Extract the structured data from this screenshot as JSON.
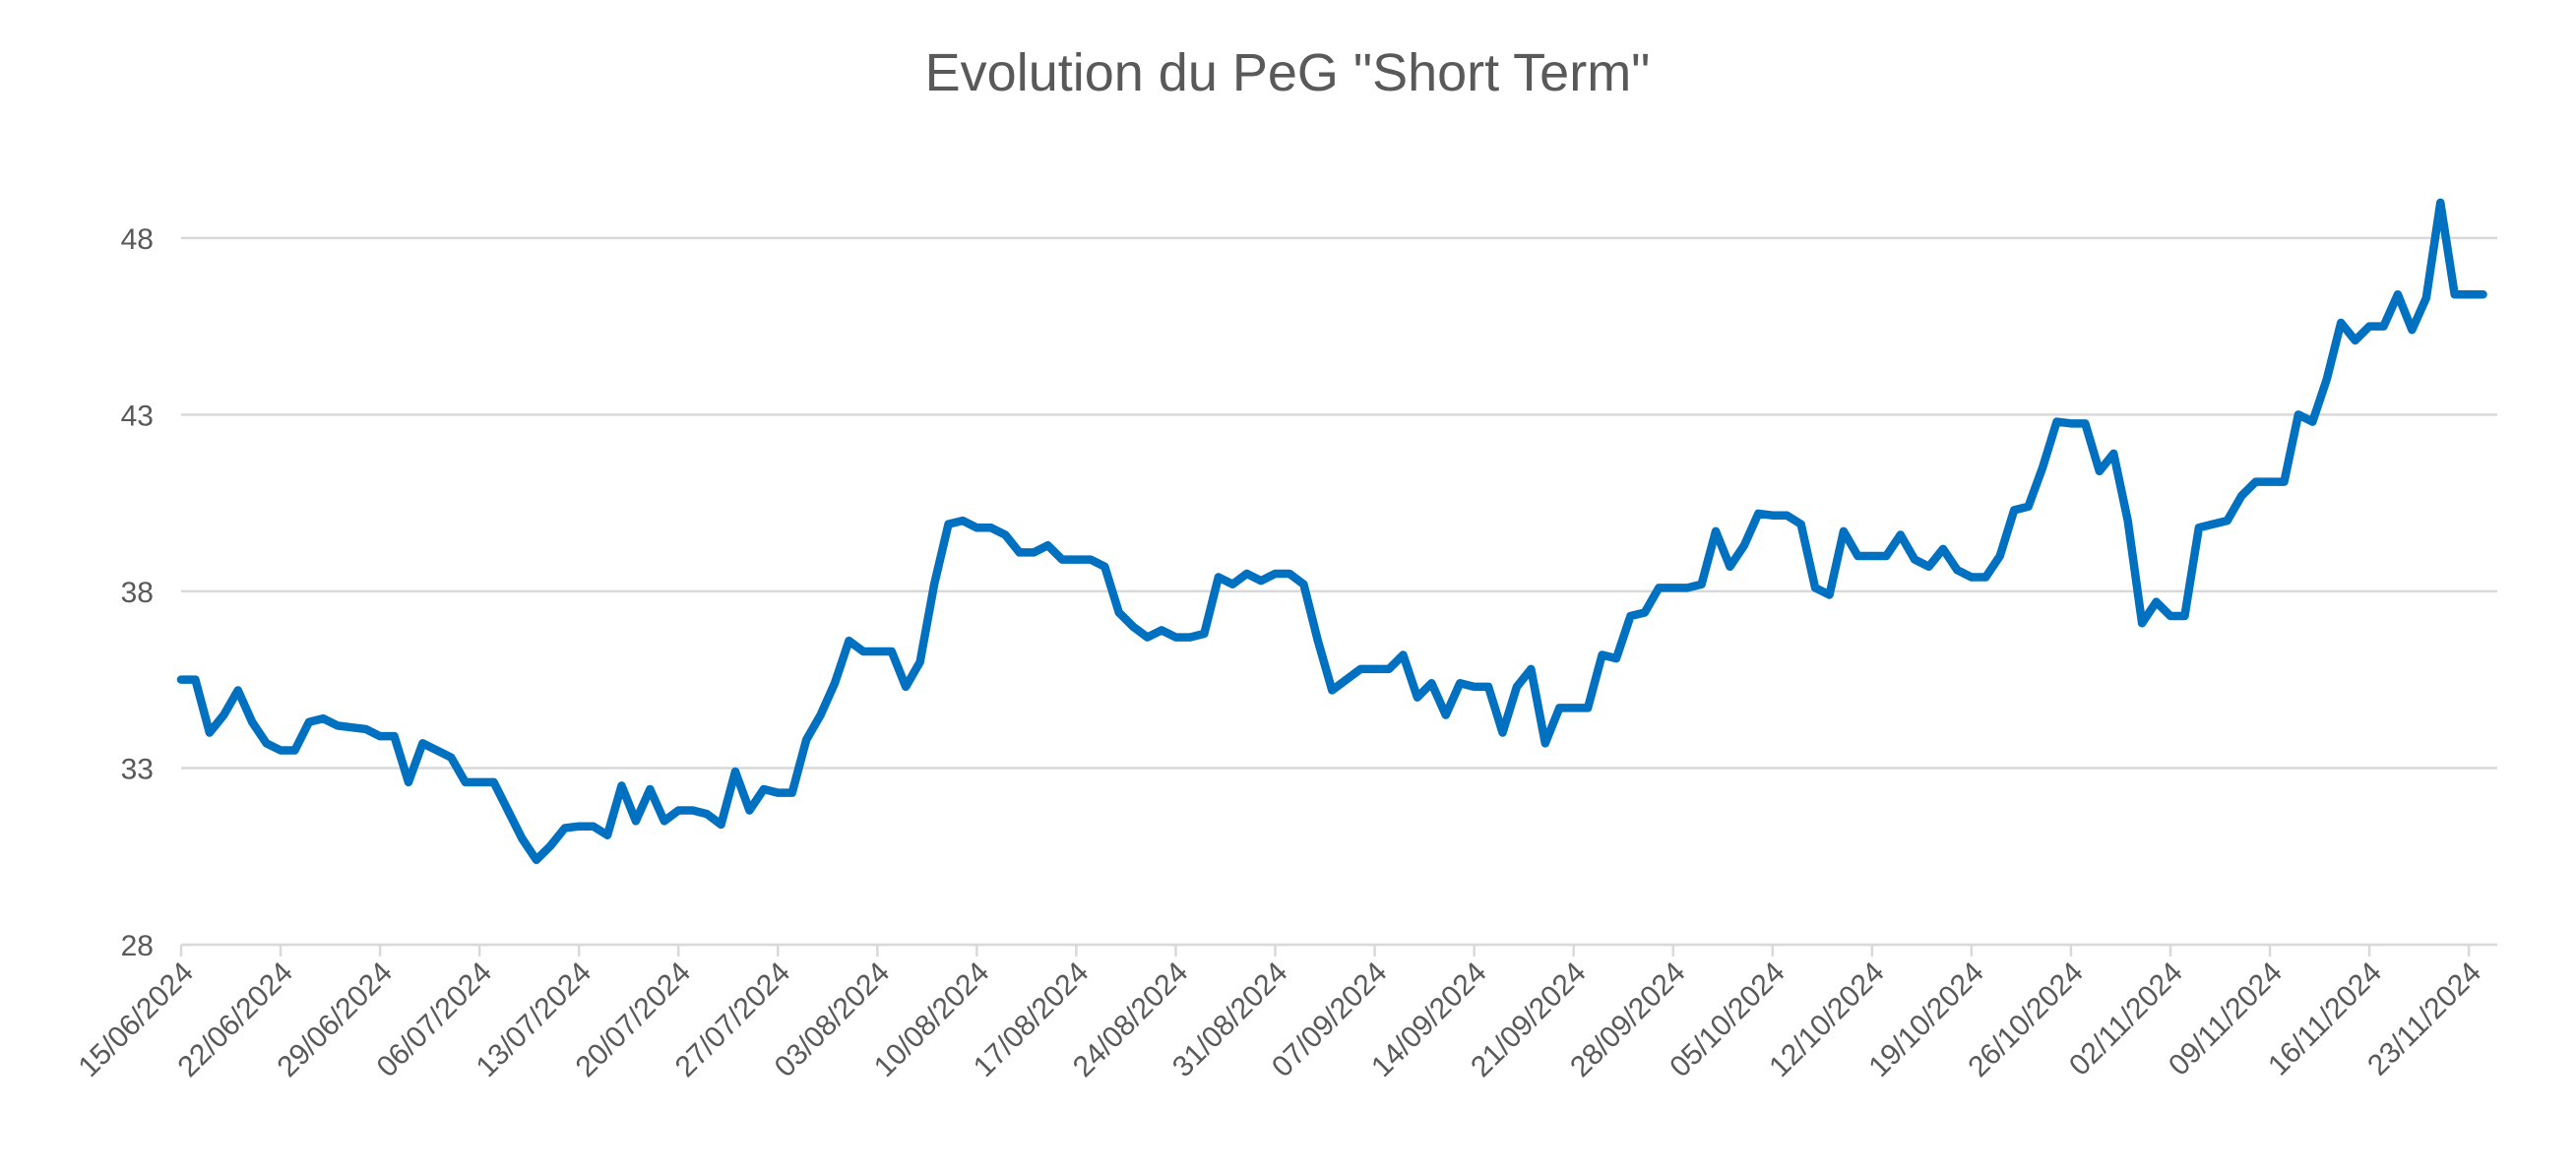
{
  "chart_data": {
    "type": "line",
    "title": "Evolution du PeG \"Short Term\"",
    "categories": [
      "15/06/2024",
      null,
      null,
      null,
      null,
      null,
      null,
      "22/06/2024",
      null,
      null,
      null,
      null,
      null,
      null,
      "29/06/2024",
      null,
      null,
      null,
      null,
      null,
      null,
      "06/07/2024",
      null,
      null,
      null,
      null,
      null,
      null,
      "13/07/2024",
      null,
      null,
      null,
      null,
      null,
      null,
      "20/07/2024",
      null,
      null,
      null,
      null,
      null,
      null,
      "27/07/2024",
      null,
      null,
      null,
      null,
      null,
      null,
      "03/08/2024",
      null,
      null,
      null,
      null,
      null,
      null,
      "10/08/2024",
      null,
      null,
      null,
      null,
      null,
      null,
      "17/08/2024",
      null,
      null,
      null,
      null,
      null,
      null,
      "24/08/2024",
      null,
      null,
      null,
      null,
      null,
      null,
      "31/08/2024",
      null,
      null,
      null,
      null,
      null,
      null,
      "07/09/2024",
      null,
      null,
      null,
      null,
      null,
      null,
      "14/09/2024",
      null,
      null,
      null,
      null,
      null,
      null,
      "21/09/2024",
      null,
      null,
      null,
      null,
      null,
      null,
      "28/09/2024",
      null,
      null,
      null,
      null,
      null,
      null,
      "05/10/2024",
      null,
      null,
      null,
      null,
      null,
      null,
      "12/10/2024",
      null,
      null,
      null,
      null,
      null,
      null,
      "19/10/2024",
      null,
      null,
      null,
      null,
      null,
      null,
      "26/10/2024",
      null,
      null,
      null,
      null,
      null,
      null,
      "02/11/2024",
      null,
      null,
      null,
      null,
      null,
      null,
      "09/11/2024",
      null,
      null,
      null,
      null,
      null,
      null,
      "16/11/2024",
      null,
      null,
      null,
      null,
      null,
      null,
      "23/11/2024",
      null
    ],
    "values": [
      35.5,
      35.5,
      34.0,
      34.5,
      35.2,
      34.3,
      33.7,
      33.5,
      33.5,
      34.3,
      34.4,
      34.2,
      34.15,
      34.1,
      33.9,
      33.9,
      32.6,
      33.7,
      33.5,
      33.3,
      32.6,
      32.6,
      32.6,
      31.8,
      31.0,
      30.4,
      30.8,
      31.3,
      31.35,
      31.35,
      31.1,
      32.5,
      31.5,
      32.4,
      31.5,
      31.8,
      31.8,
      31.7,
      31.4,
      32.9,
      31.8,
      32.4,
      32.3,
      32.3,
      33.8,
      34.5,
      35.4,
      36.6,
      36.3,
      36.3,
      36.3,
      35.3,
      36.0,
      38.2,
      39.9,
      40.0,
      39.8,
      39.8,
      39.6,
      39.1,
      39.1,
      39.3,
      38.9,
      38.9,
      38.9,
      38.7,
      37.4,
      37.0,
      36.7,
      36.9,
      36.7,
      36.7,
      36.8,
      38.4,
      38.2,
      38.5,
      38.3,
      38.5,
      38.5,
      38.2,
      36.6,
      35.2,
      35.5,
      35.8,
      35.8,
      35.8,
      36.2,
      35.0,
      35.4,
      34.5,
      35.4,
      35.3,
      35.3,
      34.0,
      35.3,
      35.8,
      33.7,
      34.7,
      34.7,
      34.7,
      36.2,
      36.1,
      37.3,
      37.4,
      38.1,
      38.1,
      38.1,
      38.2,
      39.7,
      38.7,
      39.3,
      40.2,
      40.15,
      40.15,
      39.9,
      38.1,
      37.9,
      39.7,
      39.0,
      39.0,
      39.0,
      39.6,
      38.9,
      38.7,
      39.2,
      38.6,
      38.4,
      38.4,
      39.0,
      40.3,
      40.4,
      41.5,
      42.8,
      42.75,
      42.75,
      41.4,
      41.9,
      40.0,
      37.1,
      37.7,
      37.3,
      37.3,
      39.8,
      39.9,
      40.0,
      40.7,
      41.1,
      41.1,
      41.1,
      43.0,
      42.8,
      44.0,
      45.6,
      45.1,
      45.5,
      45.5,
      46.4,
      45.4,
      46.3,
      49.0,
      46.4,
      46.4,
      46.4
    ],
    "color": "#0070c0",
    "ylim": [
      28,
      50
    ],
    "yticks": [
      28,
      33,
      38,
      43,
      48
    ],
    "grid": true
  }
}
